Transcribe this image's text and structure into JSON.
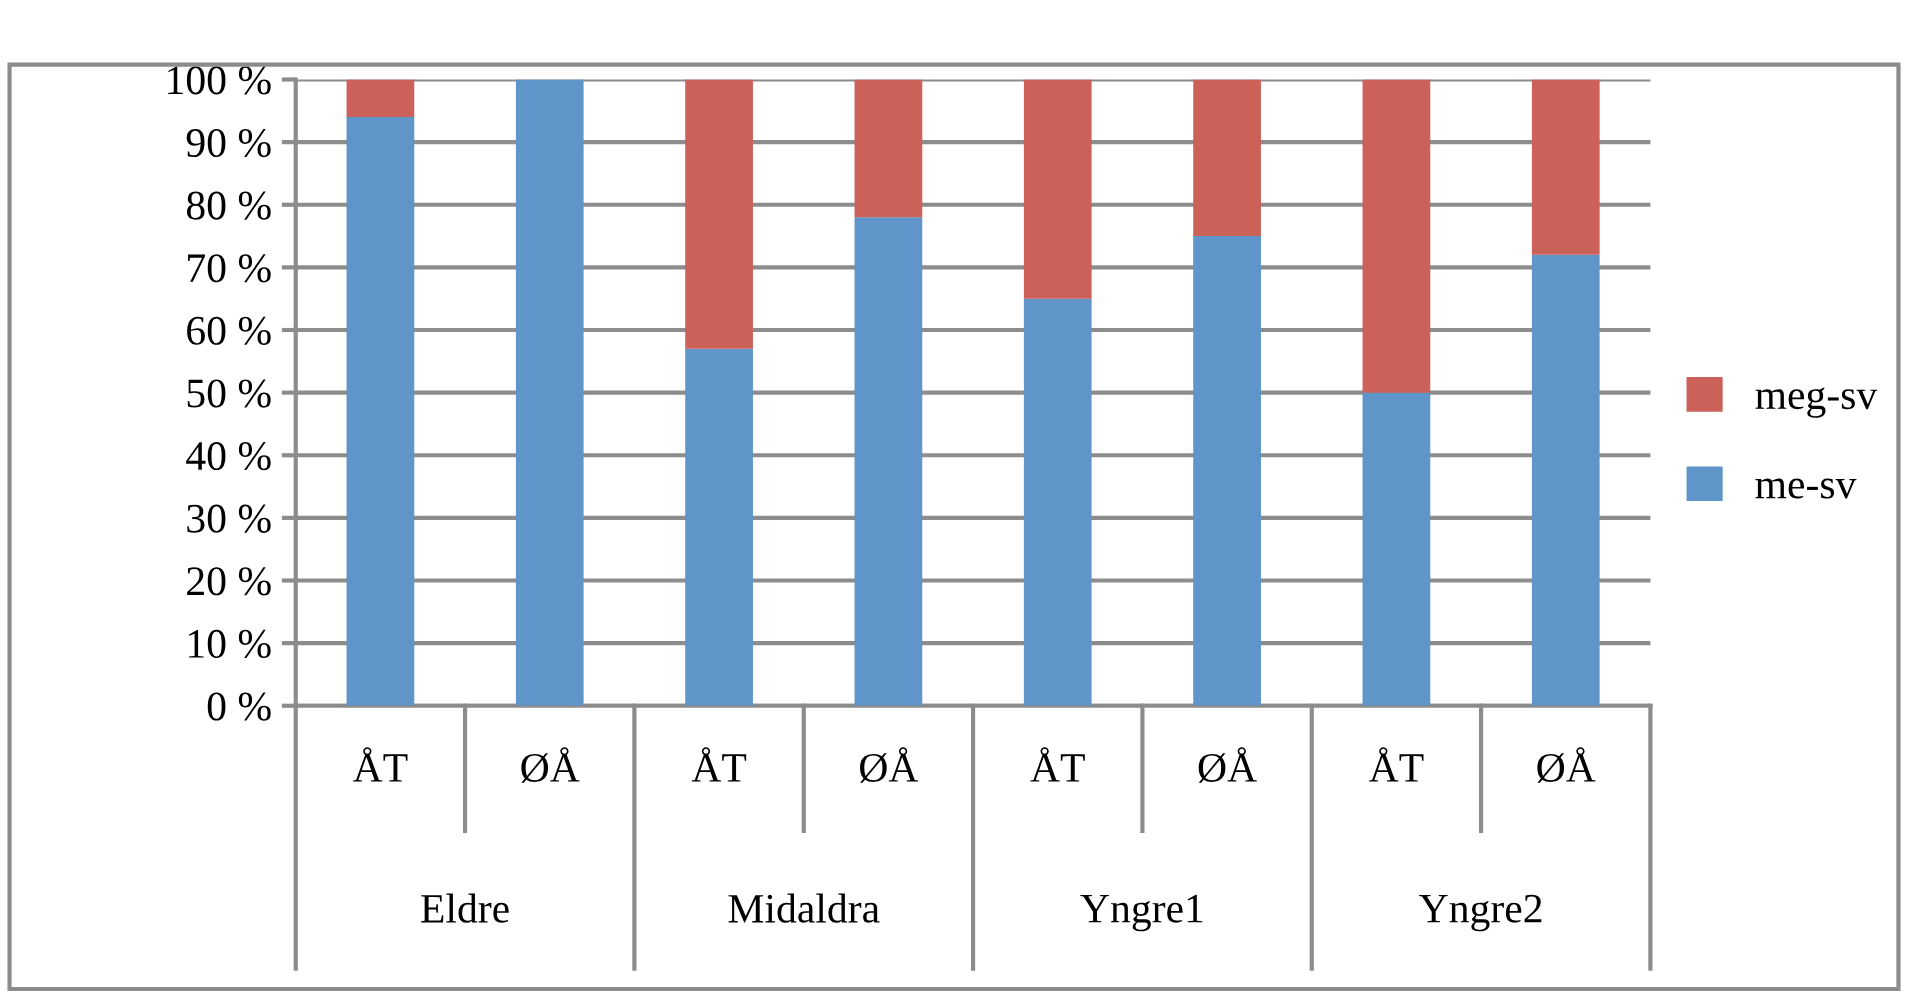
{
  "chart_data": {
    "type": "bar",
    "stacked": true,
    "categories": [
      "ÅT",
      "ØÅ",
      "ÅT",
      "ØÅ",
      "ÅT",
      "ØÅ",
      "ÅT",
      "ØÅ"
    ],
    "series": [
      {
        "name": "me-sv",
        "color": "#5f95c9",
        "values": [
          94,
          100,
          57,
          78,
          65,
          75,
          50,
          72
        ]
      },
      {
        "name": "meg-sv",
        "color": "#cb6158",
        "values": [
          6,
          0,
          43,
          22,
          35,
          25,
          50,
          28
        ]
      }
    ],
    "annotations": [
      "Eldre",
      "Midaldra",
      "Yngre1",
      "Yngre2"
    ],
    "ylim": [
      0,
      100
    ],
    "yticks": [
      {
        "value": 0,
        "label": "0 %"
      },
      {
        "value": 10,
        "label": "10 %"
      },
      {
        "value": 20,
        "label": "20 %"
      },
      {
        "value": 30,
        "label": "30 %"
      },
      {
        "value": 40,
        "label": "40 %"
      },
      {
        "value": 50,
        "label": "50 %"
      },
      {
        "value": 60,
        "label": "60 %"
      },
      {
        "value": 70,
        "label": "70 %"
      },
      {
        "value": 80,
        "label": "80 %"
      },
      {
        "value": 90,
        "label": "90 %"
      },
      {
        "value": 100,
        "label": "100 %"
      }
    ],
    "grid": "y",
    "legend": "right"
  }
}
